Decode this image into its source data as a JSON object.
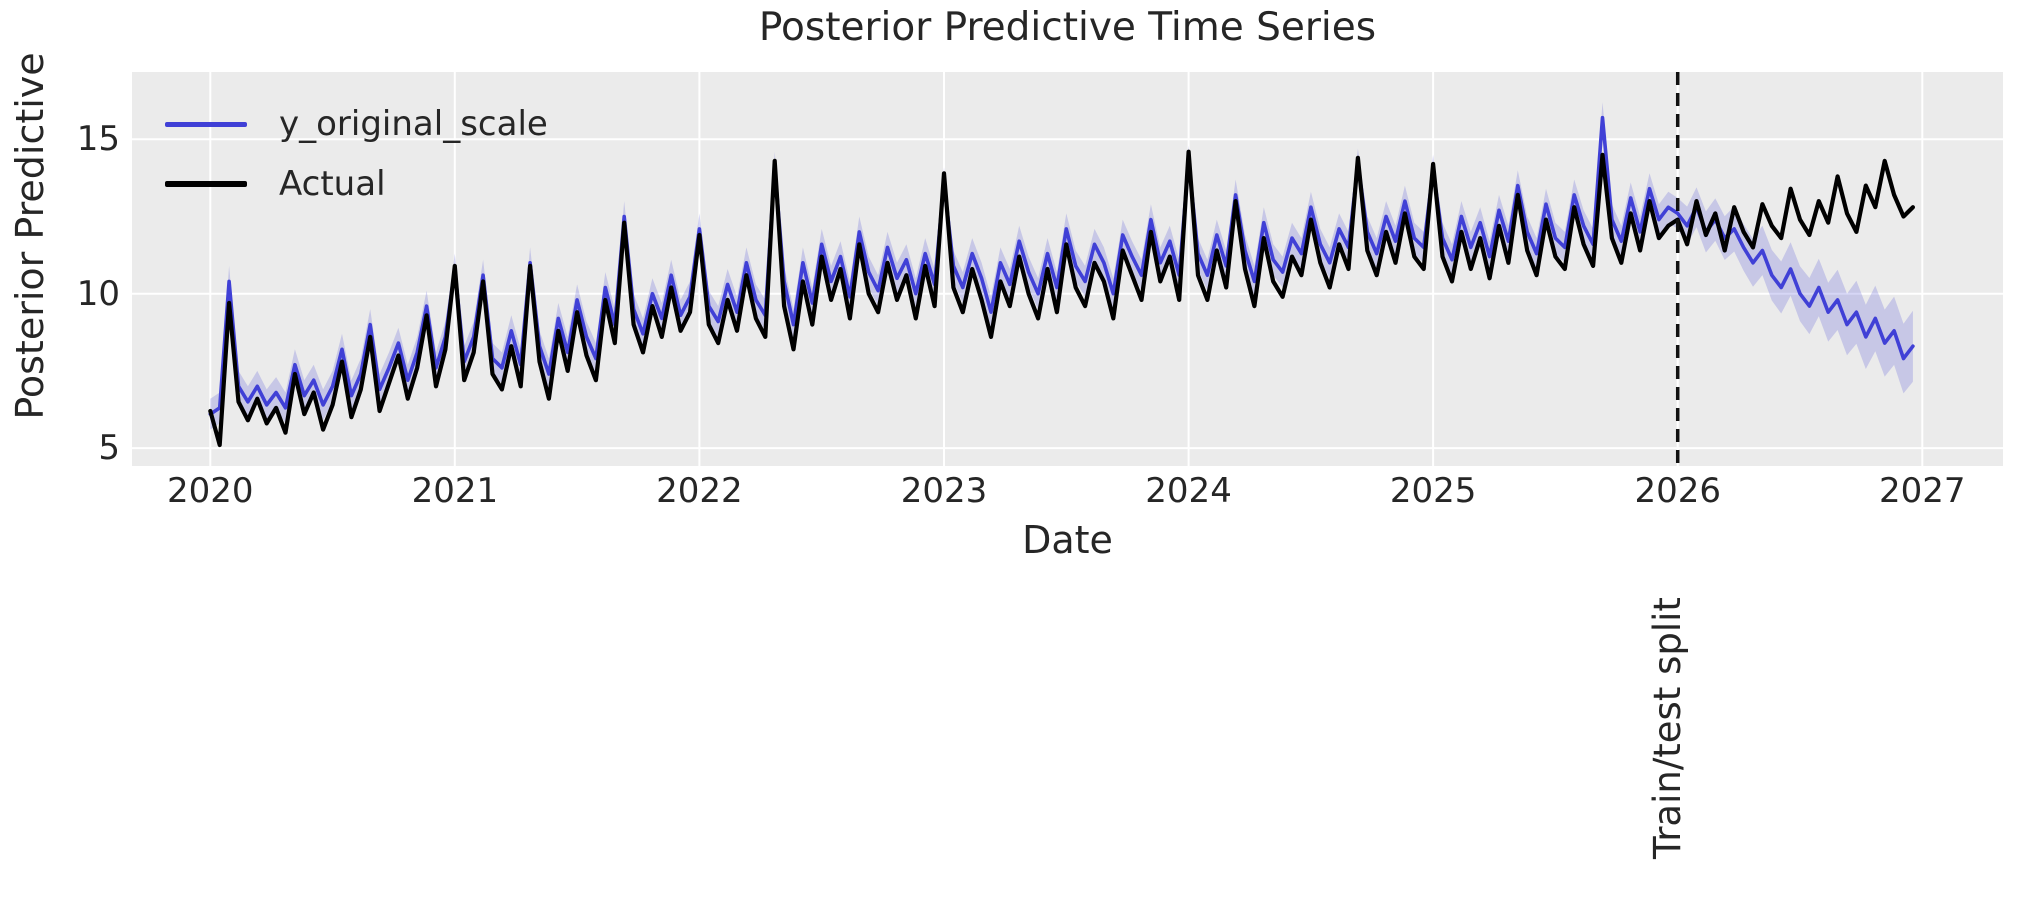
{
  "style": {
    "plot_bg": "#ebebeb",
    "grid_color": "#ffffff",
    "text_color": "#262626",
    "band_fill": "rgba(92,92,214,0.25)",
    "split_line_color": "#111111",
    "pred_color": "#4040d6",
    "actual_color": "#000000"
  },
  "chart_data": {
    "type": "line",
    "title": "Posterior Predictive Time Series",
    "xlabel": "Date",
    "ylabel": "Posterior Predictive",
    "legend_position": "upper left",
    "grid": true,
    "xticks": [
      2020,
      2021,
      2022,
      2023,
      2024,
      2025,
      2026,
      2027
    ],
    "yticks": [
      5,
      10,
      15
    ],
    "xlim": [
      2019.68,
      2027.33
    ],
    "ylim": [
      4.42,
      17.18
    ],
    "x_start": 2020.0,
    "x_step": 0.0384615,
    "split_x": 2026.0,
    "split_label": "Train/test split",
    "band": {
      "around_series": "y_original_scale",
      "halfwidth_train": 0.5,
      "halfwidth_test_start": 0.6,
      "halfwidth_test_end": 1.15
    },
    "series": [
      {
        "name": "y_original_scale",
        "color": "#4040d6",
        "values": [
          6.1,
          6.3,
          10.4,
          7.0,
          6.5,
          7.0,
          6.4,
          6.8,
          6.3,
          7.7,
          6.7,
          7.2,
          6.4,
          7.0,
          8.2,
          6.7,
          7.4,
          9.0,
          6.9,
          7.6,
          8.4,
          7.2,
          8.1,
          9.6,
          7.6,
          8.6,
          10.8,
          7.8,
          8.6,
          10.6,
          7.9,
          7.6,
          8.8,
          7.7,
          11.0,
          8.3,
          7.4,
          9.2,
          8.1,
          9.8,
          8.6,
          7.9,
          10.2,
          9.0,
          12.5,
          9.5,
          8.7,
          10.0,
          9.2,
          10.6,
          9.3,
          9.9,
          12.1,
          9.6,
          9.1,
          10.3,
          9.4,
          11.0,
          9.8,
          9.3,
          14.1,
          10.4,
          9.0,
          11.0,
          9.7,
          11.6,
          10.4,
          11.2,
          9.9,
          12.0,
          10.7,
          10.1,
          11.5,
          10.5,
          11.1,
          10.0,
          11.3,
          10.3,
          13.6,
          10.9,
          10.2,
          11.3,
          10.5,
          9.4,
          11.0,
          10.3,
          11.7,
          10.7,
          10.0,
          11.3,
          10.2,
          12.1,
          10.9,
          10.4,
          11.6,
          11.0,
          10.0,
          11.9,
          11.2,
          10.6,
          12.4,
          11.0,
          11.7,
          10.6,
          14.3,
          11.3,
          10.6,
          11.9,
          10.9,
          13.2,
          11.4,
          10.4,
          12.3,
          11.1,
          10.7,
          11.8,
          11.3,
          12.8,
          11.6,
          11.0,
          12.1,
          11.5,
          14.2,
          12.0,
          11.3,
          12.5,
          11.7,
          13.0,
          11.8,
          11.5,
          14.0,
          11.8,
          11.1,
          12.5,
          11.5,
          12.3,
          11.2,
          12.7,
          11.7,
          13.5,
          12.0,
          11.3,
          12.9,
          11.8,
          11.5,
          13.2,
          12.2,
          11.6,
          15.7,
          12.4,
          11.7,
          13.1,
          12.0,
          13.4,
          12.4,
          12.8,
          12.6,
          12.2,
          12.8,
          12.0,
          12.4,
          11.8,
          12.1,
          11.5,
          11.0,
          11.4,
          10.6,
          10.2,
          10.8,
          10.0,
          9.6,
          10.2,
          9.4,
          9.8,
          9.0,
          9.4,
          8.6,
          9.2,
          8.4,
          8.8,
          7.9,
          8.3
        ]
      },
      {
        "name": "Actual",
        "color": "#000000",
        "values": [
          6.2,
          5.1,
          9.7,
          6.5,
          5.9,
          6.6,
          5.8,
          6.3,
          5.5,
          7.4,
          6.1,
          6.8,
          5.6,
          6.4,
          7.8,
          6.0,
          6.9,
          8.6,
          6.2,
          7.1,
          8.0,
          6.6,
          7.6,
          9.3,
          7.0,
          8.2,
          10.9,
          7.2,
          8.1,
          10.4,
          7.4,
          6.9,
          8.3,
          7.0,
          10.9,
          7.8,
          6.6,
          8.8,
          7.5,
          9.4,
          8.0,
          7.2,
          9.8,
          8.4,
          12.3,
          9.0,
          8.1,
          9.6,
          8.6,
          10.2,
          8.8,
          9.4,
          11.9,
          9.0,
          8.4,
          9.8,
          8.8,
          10.6,
          9.2,
          8.6,
          14.3,
          9.6,
          8.2,
          10.4,
          9.0,
          11.2,
          9.8,
          10.8,
          9.2,
          11.6,
          10.0,
          9.4,
          11.0,
          9.8,
          10.6,
          9.2,
          10.9,
          9.6,
          13.9,
          10.2,
          9.4,
          10.8,
          9.8,
          8.6,
          10.4,
          9.6,
          11.2,
          10.0,
          9.2,
          10.8,
          9.4,
          11.6,
          10.2,
          9.6,
          11.0,
          10.4,
          9.2,
          11.4,
          10.6,
          9.8,
          12.0,
          10.4,
          11.2,
          9.8,
          14.6,
          10.6,
          9.8,
          11.4,
          10.2,
          13.0,
          10.8,
          9.6,
          11.8,
          10.4,
          9.9,
          11.2,
          10.6,
          12.4,
          11.0,
          10.2,
          11.6,
          10.8,
          14.4,
          11.4,
          10.6,
          12.0,
          11.0,
          12.6,
          11.2,
          10.8,
          14.2,
          11.2,
          10.4,
          12.0,
          10.8,
          11.8,
          10.5,
          12.2,
          11.0,
          13.2,
          11.4,
          10.6,
          12.4,
          11.2,
          10.8,
          12.8,
          11.6,
          10.9,
          14.5,
          11.8,
          11.0,
          12.6,
          11.4,
          13.0,
          11.8,
          12.2,
          12.4,
          11.6,
          13.0,
          11.9,
          12.6,
          11.4,
          12.8,
          12.0,
          11.5,
          12.9,
          12.2,
          11.8,
          13.4,
          12.4,
          11.9,
          13.0,
          12.3,
          13.8,
          12.6,
          12.0,
          13.5,
          12.8,
          14.3,
          13.2,
          12.5,
          12.8
        ]
      }
    ]
  }
}
